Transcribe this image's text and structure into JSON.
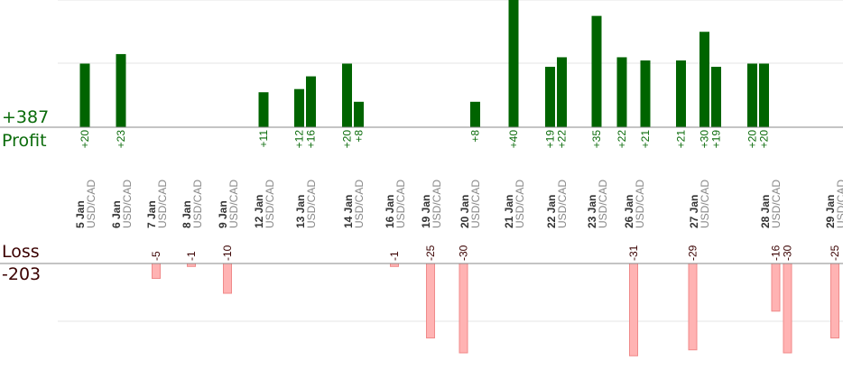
{
  "summary": {
    "profit_total": "+387",
    "profit_label": "Profit",
    "loss_label": "Loss",
    "loss_total": "-203"
  },
  "colors": {
    "profit_bar": "#006400",
    "profit_text": "#0a6b0a",
    "loss_bar_fill": "#ffb3b3",
    "loss_bar_stroke": "#f08a8a",
    "grid": "#e6e6e6",
    "baseline": "#888888",
    "date_text": "#333333",
    "pair_text": "#888888"
  },
  "chart_data": {
    "type": "bar",
    "profit_scale": [
      0,
      40
    ],
    "loss_scale": [
      0,
      -35
    ],
    "days": [
      {
        "date": "5 Jan",
        "pair": "USD/CAD"
      },
      {
        "date": "6 Jan",
        "pair": "USD/CAD"
      },
      {
        "date": "7 Jan",
        "pair": "USD/CAD"
      },
      {
        "date": "8 Jan",
        "pair": "USD/CAD"
      },
      {
        "date": "9 Jan",
        "pair": "USD/CAD"
      },
      {
        "date": "12 Jan",
        "pair": "USD/CAD"
      },
      {
        "date": "13 Jan",
        "pair": "USD/CAD"
      },
      {
        "date": "14 Jan",
        "pair": "USD/CAD"
      },
      {
        "date": "16 Jan",
        "pair": "USD/CAD"
      },
      {
        "date": "19 Jan",
        "pair": "USD/CAD"
      },
      {
        "date": "20 Jan",
        "pair": "USD/CAD"
      },
      {
        "date": "21 Jan",
        "pair": "USD/CAD"
      },
      {
        "date": "22 Jan",
        "pair": "USD/CAD"
      },
      {
        "date": "23 Jan",
        "pair": "USD/CAD"
      },
      {
        "date": "26 Jan",
        "pair": "USD/CAD"
      },
      {
        "date": "27 Jan",
        "pair": "USD/CAD"
      },
      {
        "date": "28 Jan",
        "pair": "USD/CAD"
      },
      {
        "date": "29 Jan",
        "pair": "USD/CAD"
      }
    ],
    "trades": [
      {
        "day": 0,
        "value": 20,
        "label": "+20"
      },
      {
        "day": 1,
        "value": 23,
        "label": "+23"
      },
      {
        "day": 2,
        "value": -5,
        "label": "-5"
      },
      {
        "day": 3,
        "value": -1,
        "label": "-1"
      },
      {
        "day": 4,
        "value": -10,
        "label": "-10"
      },
      {
        "day": 5,
        "value": 11,
        "label": "+11"
      },
      {
        "day": 6,
        "value": 12,
        "label": "+12"
      },
      {
        "day": 6,
        "value": 16,
        "label": "+16"
      },
      {
        "day": 7,
        "value": 20,
        "label": "+20"
      },
      {
        "day": 7,
        "value": 8,
        "label": "+8"
      },
      {
        "day": 8,
        "value": -1,
        "label": "-1"
      },
      {
        "day": 9,
        "value": -25,
        "label": "-25"
      },
      {
        "day": 10,
        "value": -30,
        "label": "-30"
      },
      {
        "day": 10,
        "value": 8,
        "label": "+8"
      },
      {
        "day": 11,
        "value": 40,
        "label": "+40"
      },
      {
        "day": 12,
        "value": 19,
        "label": "+19"
      },
      {
        "day": 12,
        "value": 22,
        "label": "+22"
      },
      {
        "day": 13,
        "value": 35,
        "label": "+35"
      },
      {
        "day": 14,
        "value": 22,
        "label": "+22"
      },
      {
        "day": 14,
        "value": -31,
        "label": "-31"
      },
      {
        "day": 14,
        "value": 21,
        "label": "+21"
      },
      {
        "day": 15,
        "value": 21,
        "label": "+21"
      },
      {
        "day": 15,
        "value": -29,
        "label": "-29"
      },
      {
        "day": 15,
        "value": 30,
        "label": "+30"
      },
      {
        "day": 15,
        "value": 19,
        "label": "+19"
      },
      {
        "day": 16,
        "value": 20,
        "label": "+20"
      },
      {
        "day": 16,
        "value": 20,
        "label": "+20"
      },
      {
        "day": 16,
        "value": -16,
        "label": "-16"
      },
      {
        "day": 16,
        "value": -30,
        "label": "-30"
      },
      {
        "day": 17,
        "value": -25,
        "label": "-25"
      }
    ]
  }
}
